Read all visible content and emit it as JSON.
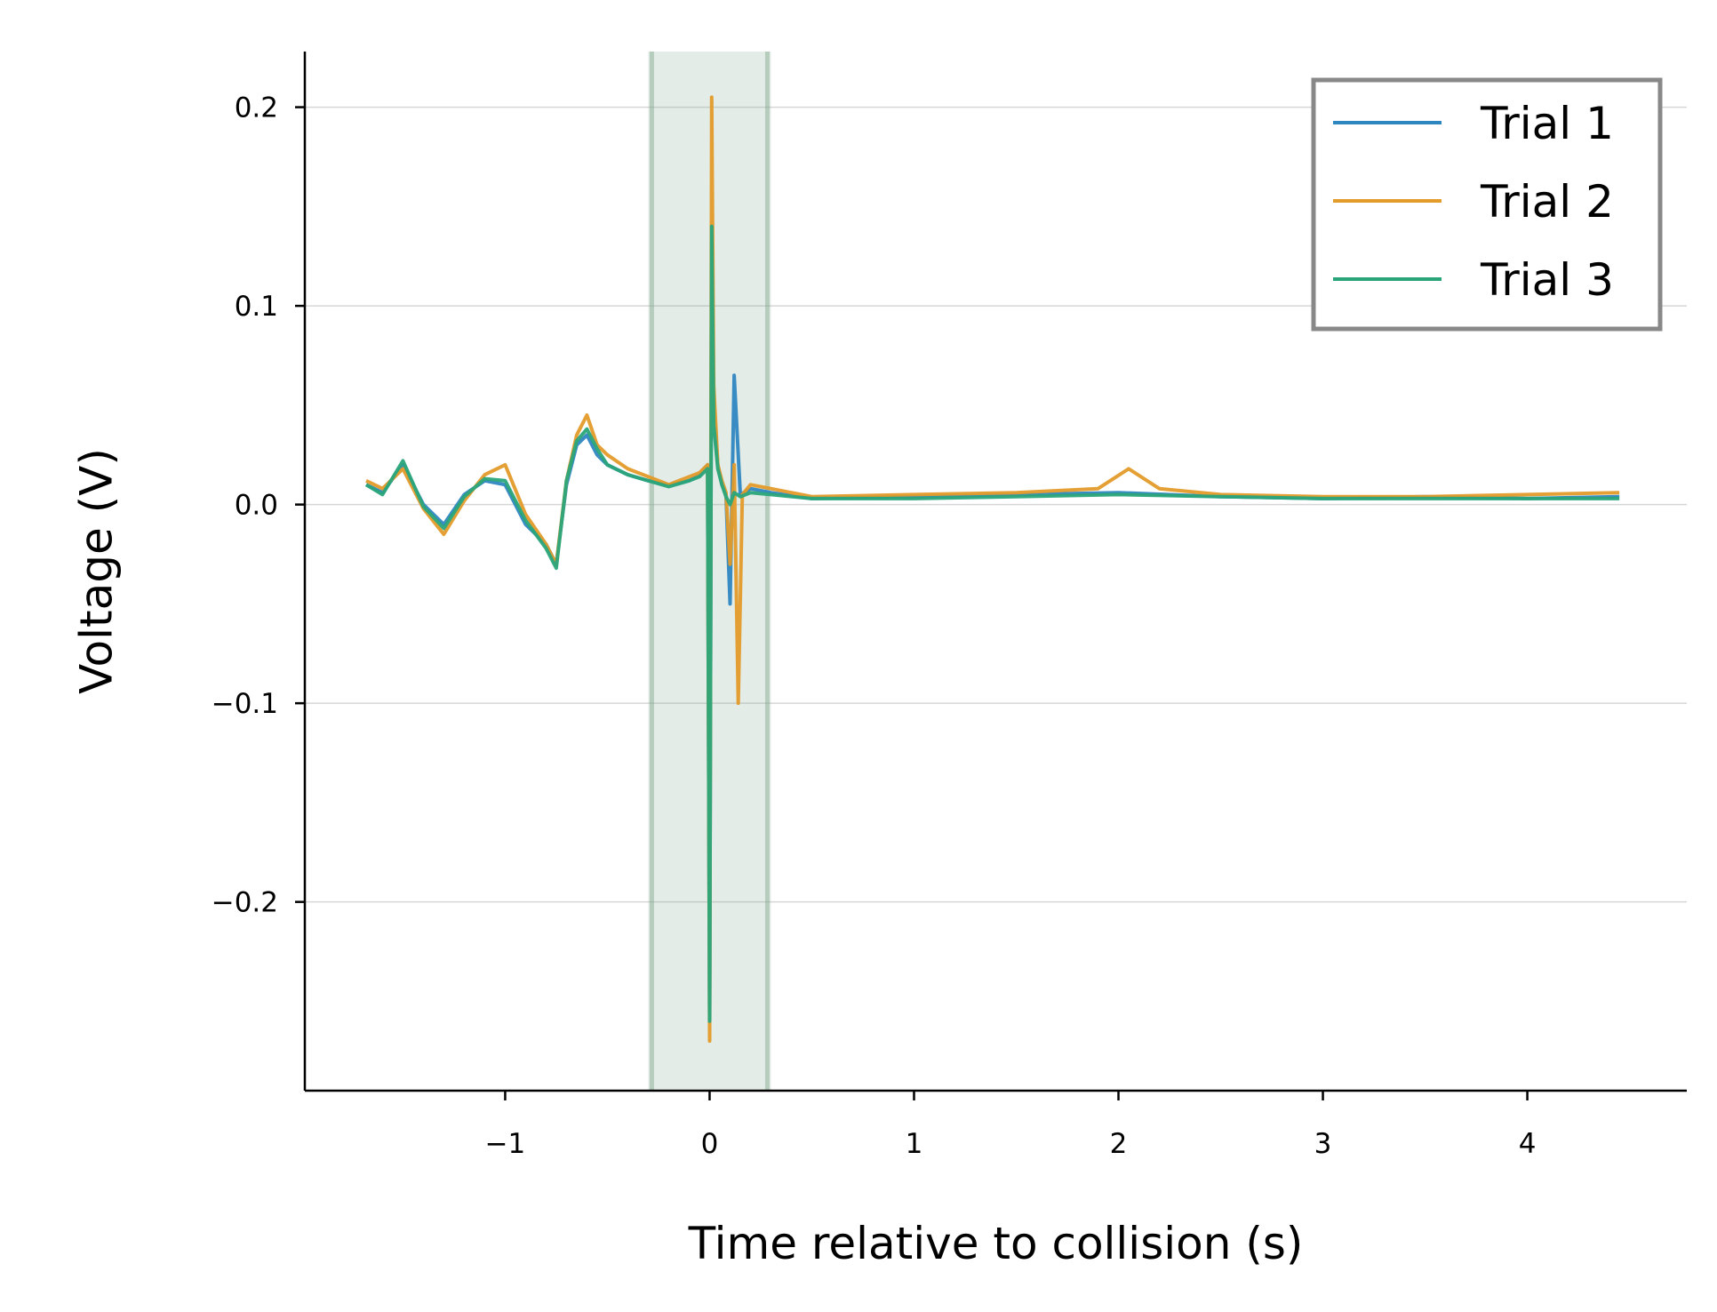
{
  "chart_data": {
    "type": "line",
    "title": "",
    "xlabel": "Time relative to collision (s)",
    "ylabel": "Voltage (V)",
    "xlim": [
      -1.98,
      4.78
    ],
    "ylim": [
      -0.295,
      0.228
    ],
    "xticks": [
      {
        "value": -1,
        "label": "−1"
      },
      {
        "value": 0,
        "label": "0"
      },
      {
        "value": 1,
        "label": "1"
      },
      {
        "value": 2,
        "label": "2"
      },
      {
        "value": 3,
        "label": "3"
      },
      {
        "value": 4,
        "label": "4"
      }
    ],
    "yticks": [
      {
        "value": -0.2,
        "label": "−0.2"
      },
      {
        "value": -0.1,
        "label": "−0.1"
      },
      {
        "value": 0.0,
        "label": "0.0"
      },
      {
        "value": 0.1,
        "label": "0.1"
      },
      {
        "value": 0.2,
        "label": "0.2"
      }
    ],
    "grid": "horizontal",
    "legend_position": "top-right",
    "highlight_region": {
      "x_start": -0.3,
      "x_end": 0.3,
      "color": "#7fa88f"
    },
    "series": [
      {
        "name": "Trial 1",
        "color": "#2e86c1",
        "x": [
          -1.68,
          -1.6,
          -1.5,
          -1.4,
          -1.3,
          -1.2,
          -1.1,
          -1.0,
          -0.9,
          -0.8,
          -0.75,
          -0.7,
          -0.65,
          -0.6,
          -0.55,
          -0.5,
          -0.4,
          -0.3,
          -0.2,
          -0.1,
          -0.05,
          -0.01,
          0.0,
          0.01,
          0.02,
          0.04,
          0.06,
          0.08,
          0.1,
          0.12,
          0.15,
          0.2,
          0.3,
          0.5,
          1.0,
          1.5,
          2.0,
          2.5,
          3.0,
          3.5,
          4.0,
          4.45
        ],
        "y": [
          0.01,
          0.006,
          0.02,
          0.0,
          -0.01,
          0.005,
          0.012,
          0.01,
          -0.01,
          -0.02,
          -0.03,
          0.01,
          0.03,
          0.035,
          0.025,
          0.02,
          0.015,
          0.012,
          0.01,
          0.012,
          0.015,
          0.02,
          -0.26,
          0.14,
          0.05,
          0.02,
          0.01,
          0.005,
          -0.05,
          0.065,
          0.005,
          0.008,
          0.006,
          0.003,
          0.004,
          0.005,
          0.006,
          0.004,
          0.003,
          0.004,
          0.003,
          0.004
        ]
      },
      {
        "name": "Trial 2",
        "color": "#e39b2a",
        "x": [
          -1.68,
          -1.6,
          -1.5,
          -1.4,
          -1.3,
          -1.2,
          -1.1,
          -1.0,
          -0.9,
          -0.8,
          -0.75,
          -0.7,
          -0.65,
          -0.6,
          -0.55,
          -0.5,
          -0.4,
          -0.3,
          -0.2,
          -0.1,
          -0.05,
          -0.01,
          0.0,
          0.01,
          0.02,
          0.04,
          0.06,
          0.08,
          0.1,
          0.12,
          0.14,
          0.16,
          0.2,
          0.3,
          0.5,
          1.0,
          1.5,
          1.9,
          2.05,
          2.2,
          2.5,
          3.0,
          3.5,
          4.0,
          4.45
        ],
        "y": [
          0.012,
          0.008,
          0.018,
          -0.002,
          -0.015,
          0.002,
          0.015,
          0.02,
          -0.005,
          -0.02,
          -0.03,
          0.012,
          0.035,
          0.045,
          0.03,
          0.025,
          0.018,
          0.014,
          0.01,
          0.014,
          0.016,
          0.02,
          -0.27,
          0.205,
          0.06,
          0.02,
          0.012,
          0.006,
          -0.03,
          0.02,
          -0.1,
          0.005,
          0.01,
          0.008,
          0.004,
          0.005,
          0.006,
          0.008,
          0.018,
          0.008,
          0.005,
          0.004,
          0.004,
          0.005,
          0.006
        ]
      },
      {
        "name": "Trial 3",
        "color": "#2aa57a",
        "x": [
          -1.68,
          -1.6,
          -1.5,
          -1.4,
          -1.3,
          -1.2,
          -1.1,
          -1.0,
          -0.9,
          -0.8,
          -0.75,
          -0.7,
          -0.65,
          -0.6,
          -0.55,
          -0.5,
          -0.4,
          -0.3,
          -0.2,
          -0.1,
          -0.05,
          -0.01,
          0.0,
          0.01,
          0.02,
          0.04,
          0.06,
          0.08,
          0.1,
          0.12,
          0.15,
          0.2,
          0.3,
          0.5,
          1.0,
          1.5,
          2.0,
          2.5,
          3.0,
          3.5,
          4.0,
          4.45
        ],
        "y": [
          0.01,
          0.005,
          0.022,
          -0.001,
          -0.012,
          0.004,
          0.013,
          0.012,
          -0.008,
          -0.022,
          -0.032,
          0.012,
          0.032,
          0.038,
          0.028,
          0.02,
          0.015,
          0.012,
          0.009,
          0.012,
          0.014,
          0.018,
          -0.26,
          0.14,
          0.04,
          0.018,
          0.01,
          0.004,
          0.0,
          0.006,
          0.004,
          0.006,
          0.005,
          0.003,
          0.003,
          0.004,
          0.005,
          0.004,
          0.003,
          0.003,
          0.003,
          0.003
        ]
      }
    ]
  }
}
